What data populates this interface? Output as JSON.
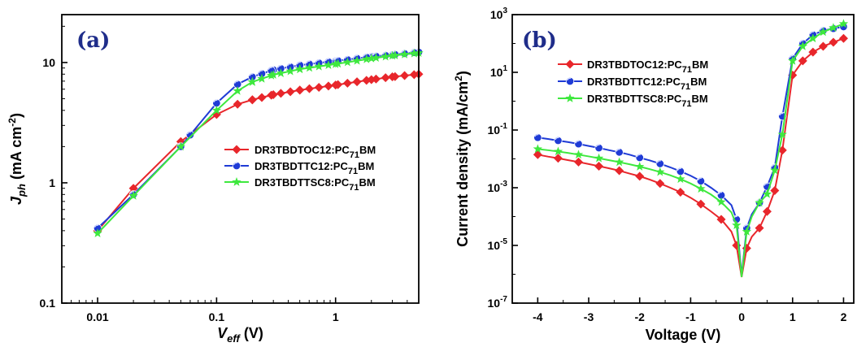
{
  "chart_data": [
    {
      "panel_label": "(a)",
      "type": "scatter",
      "xscale": "log",
      "yscale": "log",
      "xlim": [
        0.005,
        5
      ],
      "ylim": [
        0.1,
        25
      ],
      "xticks": [
        "0.01",
        "0.1",
        "1"
      ],
      "xtick_values": [
        0.01,
        0.1,
        1
      ],
      "yticks": [
        "0.1",
        "1",
        "10"
      ],
      "ytick_values": [
        0.1,
        1,
        10
      ],
      "xlabel": {
        "main": "V",
        "sub": "eff",
        "rest": " (V)"
      },
      "ylabel": {
        "main": "J",
        "sub": "ph",
        "rest": " (mA cm",
        "sup": "-2",
        "end": ")"
      },
      "legend_position": "center-right",
      "series": [
        {
          "name": {
            "pre": "DR3TBDTOC12:PC",
            "sub": "71",
            "post": "BM"
          },
          "color": "#e8262b",
          "marker": "diamond",
          "x": [
            0.01,
            0.02,
            0.05,
            0.1,
            0.15,
            0.2,
            0.3,
            0.5,
            1,
            2,
            3,
            5
          ],
          "y": [
            0.4,
            0.9,
            2.2,
            3.7,
            4.5,
            4.9,
            5.4,
            5.9,
            6.5,
            7.2,
            7.6,
            8.0
          ]
        },
        {
          "name": {
            "pre": "DR3TBDTTC12:PC",
            "sub": "71",
            "post": "BM"
          },
          "color": "#1f3bd6",
          "marker": "circle",
          "x": [
            0.01,
            0.02,
            0.05,
            0.06,
            0.1,
            0.15,
            0.2,
            0.3,
            0.5,
            1,
            2,
            3,
            5
          ],
          "y": [
            0.42,
            0.8,
            2.0,
            2.5,
            4.6,
            6.6,
            7.6,
            8.7,
            9.5,
            10.3,
            11.2,
            11.6,
            12.2
          ]
        },
        {
          "name": {
            "pre": "DR3TBDTTSC8:PC",
            "sub": "71",
            "post": "BM"
          },
          "color": "#3ee83e",
          "marker": "star",
          "x": [
            0.01,
            0.02,
            0.05,
            0.1,
            0.15,
            0.2,
            0.3,
            0.5,
            1,
            2,
            3,
            5
          ],
          "y": [
            0.38,
            0.78,
            2.0,
            4.0,
            5.8,
            6.9,
            7.9,
            8.8,
            9.7,
            10.8,
            11.4,
            12.0
          ]
        }
      ]
    },
    {
      "panel_label": "(b)",
      "type": "scatter",
      "xscale": "linear",
      "yscale": "log",
      "xlim": [
        -4.5,
        2.2
      ],
      "ylim": [
        1e-07,
        1000
      ],
      "xticks": [
        "-4",
        "-3",
        "-2",
        "-1",
        "0",
        "1",
        "2"
      ],
      "xtick_values": [
        -4,
        -3,
        -2,
        -1,
        0,
        1,
        2
      ],
      "yticks": [
        {
          "base": "10",
          "exp": "-7"
        },
        {
          "base": "10",
          "exp": "-5"
        },
        {
          "base": "10",
          "exp": "-3"
        },
        {
          "base": "10",
          "exp": "-1"
        },
        {
          "base": "10",
          "exp": "1"
        },
        {
          "base": "10",
          "exp": "3"
        }
      ],
      "ytick_values": [
        1e-07,
        1e-05,
        0.001,
        0.1,
        10,
        1000
      ],
      "xlabel": "Voltage (V)",
      "ylabel": {
        "main": "Current density (mA/cm",
        "sup": "2",
        "end": ")"
      },
      "legend_position": "top-left",
      "series": [
        {
          "name": {
            "pre": "DR3TBDTOC12:PC",
            "sub": "71",
            "post": "BM"
          },
          "color": "#e8262b",
          "marker": "diamond",
          "x": [
            -4,
            -3.8,
            -3.6,
            -3.4,
            -3.2,
            -3.0,
            -2.8,
            -2.6,
            -2.4,
            -2.2,
            -2.0,
            -1.8,
            -1.6,
            -1.4,
            -1.2,
            -1.0,
            -0.8,
            -0.6,
            -0.4,
            -0.2,
            -0.1,
            0.0,
            0.1,
            0.2,
            0.35,
            0.5,
            0.65,
            0.8,
            1.0,
            1.2,
            1.4,
            1.6,
            1.8,
            2.0
          ],
          "y": [
            0.014,
            0.012,
            0.0105,
            0.009,
            0.0078,
            0.0066,
            0.0056,
            0.0047,
            0.0039,
            0.0031,
            0.0025,
            0.0019,
            0.0014,
            0.001,
            0.0007,
            0.00045,
            0.00027,
            0.00015,
            8e-05,
            3e-05,
            1e-05,
            8e-07,
            8e-06,
            2e-05,
            4e-05,
            0.00015,
            0.0008,
            0.02,
            8,
            25,
            50,
            80,
            110,
            150
          ]
        },
        {
          "name": {
            "pre": "DR3TBDTTC12:PC",
            "sub": "71",
            "post": "BM"
          },
          "color": "#1f3bd6",
          "marker": "circle",
          "x": [
            -4,
            -3.8,
            -3.6,
            -3.4,
            -3.2,
            -3.0,
            -2.8,
            -2.6,
            -2.4,
            -2.2,
            -2.0,
            -1.8,
            -1.6,
            -1.4,
            -1.2,
            -1.0,
            -0.8,
            -0.6,
            -0.4,
            -0.2,
            -0.1,
            0.0,
            0.1,
            0.2,
            0.35,
            0.5,
            0.65,
            0.8,
            1.0,
            1.2,
            1.4,
            1.6,
            1.8,
            2.0
          ],
          "y": [
            0.055,
            0.049,
            0.043,
            0.038,
            0.033,
            0.028,
            0.024,
            0.02,
            0.017,
            0.014,
            0.011,
            0.0088,
            0.0068,
            0.0051,
            0.0037,
            0.0026,
            0.0017,
            0.001,
            0.00055,
            0.00025,
            8e-05,
            9e-07,
            4e-05,
            0.00012,
            0.0003,
            0.0011,
            0.005,
            0.3,
            30,
            100,
            200,
            280,
            330,
            380
          ]
        },
        {
          "name": {
            "pre": "DR3TBDTTSC8:PC",
            "sub": "71",
            "post": "BM"
          },
          "color": "#3ee83e",
          "marker": "star",
          "x": [
            -4,
            -3.8,
            -3.6,
            -3.4,
            -3.2,
            -3.0,
            -2.8,
            -2.6,
            -2.4,
            -2.2,
            -2.0,
            -1.8,
            -1.6,
            -1.4,
            -1.2,
            -1.0,
            -0.8,
            -0.6,
            -0.4,
            -0.2,
            -0.1,
            0.0,
            0.1,
            0.2,
            0.35,
            0.5,
            0.65,
            0.8,
            1.0,
            1.2,
            1.4,
            1.6,
            1.8,
            2.0
          ],
          "y": [
            0.022,
            0.02,
            0.018,
            0.016,
            0.014,
            0.0122,
            0.0105,
            0.009,
            0.0077,
            0.0065,
            0.0054,
            0.0044,
            0.0035,
            0.0027,
            0.002,
            0.0014,
            0.00092,
            0.00058,
            0.00032,
            0.00014,
            5e-05,
            8e-07,
            3e-05,
            0.0001,
            0.0003,
            0.0006,
            0.004,
            0.07,
            25,
            80,
            150,
            250,
            350,
            480
          ]
        }
      ]
    }
  ]
}
